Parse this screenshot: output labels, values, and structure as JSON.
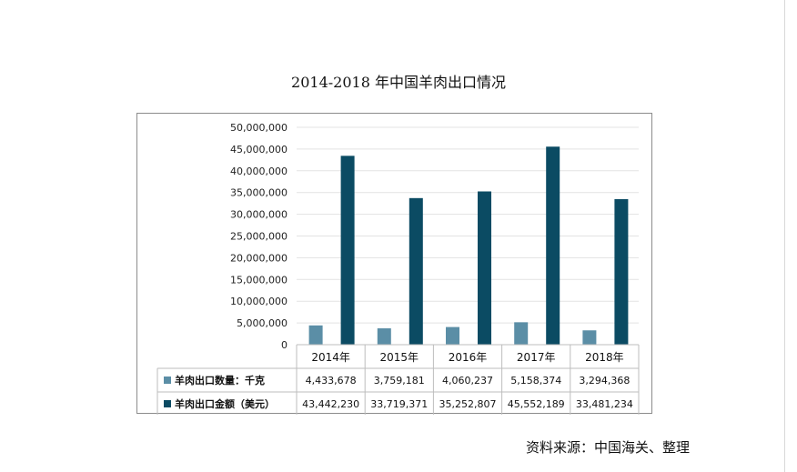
{
  "chart_data": {
    "type": "bar",
    "title": "2014-2018 年中国羊肉出口情况",
    "categories": [
      "2014年",
      "2015年",
      "2016年",
      "2017年",
      "2018年"
    ],
    "ylim": [
      0,
      50000000
    ],
    "yticks": [
      "0",
      "5,000,000",
      "10,000,000",
      "15,000,000",
      "20,000,000",
      "25,000,000",
      "30,000,000",
      "35,000,000",
      "40,000,000",
      "45,000,000",
      "50,000,000"
    ],
    "grid": true,
    "legend": "data-table",
    "series": [
      {
        "name": "羊肉出口数量：千克",
        "color": "#5b8ea6",
        "values": [
          4433678,
          3759181,
          4060237,
          5158374,
          3294368
        ],
        "labels": [
          "4,433,678",
          "3,759,181",
          "4,060,237",
          "5,158,374",
          "3,294,368"
        ]
      },
      {
        "name": "羊肉出口金额（美元）",
        "color": "#0b4b63",
        "values": [
          43442230,
          33719371,
          35252807,
          45552189,
          33481234
        ],
        "labels": [
          "43,442,230",
          "33,719,371",
          "35,252,807",
          "45,552,189",
          "33,481,234"
        ]
      }
    ]
  },
  "source": "资料来源：中国海关、整理"
}
